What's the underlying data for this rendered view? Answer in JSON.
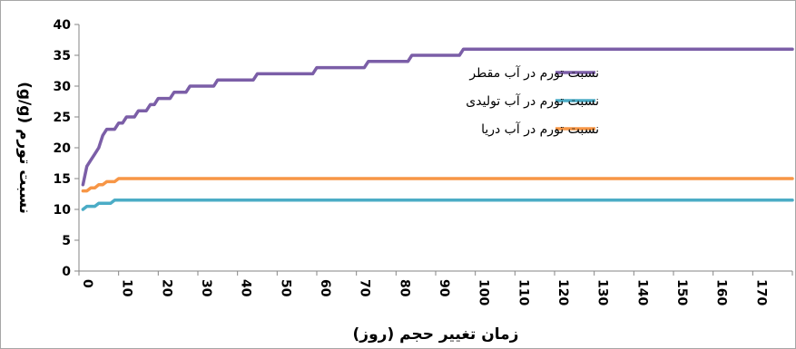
{
  "chart_data": {
    "type": "line",
    "title": "",
    "xlabel": "زمان تغییر حجم (روز)",
    "ylabel": "نسبت تورم (g/g)",
    "xlim": [
      0,
      180
    ],
    "ylim": [
      0,
      40
    ],
    "x_ticks": [
      0,
      10,
      20,
      30,
      40,
      50,
      60,
      70,
      80,
      90,
      100,
      110,
      120,
      130,
      140,
      150,
      160,
      170,
      180
    ],
    "x_tick_labels": [
      "0",
      "10",
      "20",
      "30",
      "40",
      "50",
      "60",
      "70",
      "80",
      "90",
      "100",
      "110",
      "120",
      "130",
      "140",
      "150",
      "160",
      "170",
      "180"
    ],
    "y_ticks": [
      0,
      5,
      10,
      15,
      20,
      25,
      30,
      35,
      40
    ],
    "y_tick_labels": [
      "0",
      "5",
      "10",
      "15",
      "20",
      "25",
      "30",
      "35",
      "40"
    ],
    "grid": false,
    "legend_position": "top-right",
    "series": [
      {
        "name": "نسبت تورم در آب مقطر",
        "color": "#7B5EA7",
        "points": [
          [
            1,
            14
          ],
          [
            2,
            17
          ],
          [
            3,
            18
          ],
          [
            4,
            19
          ],
          [
            5,
            20
          ],
          [
            6,
            22
          ],
          [
            7,
            23
          ],
          [
            8,
            23
          ],
          [
            9,
            23
          ],
          [
            10,
            24
          ],
          [
            11,
            24
          ],
          [
            12,
            25
          ],
          [
            13,
            25
          ],
          [
            14,
            25
          ],
          [
            15,
            26
          ],
          [
            16,
            26
          ],
          [
            17,
            26
          ],
          [
            18,
            27
          ],
          [
            19,
            27
          ],
          [
            20,
            28
          ],
          [
            21,
            28
          ],
          [
            22,
            28
          ],
          [
            23,
            28
          ],
          [
            24,
            29
          ],
          [
            25,
            29
          ],
          [
            26,
            29
          ],
          [
            27,
            29
          ],
          [
            28,
            30
          ],
          [
            30,
            30
          ],
          [
            34,
            30
          ],
          [
            35,
            31
          ],
          [
            40,
            31
          ],
          [
            44,
            31
          ],
          [
            45,
            32
          ],
          [
            50,
            32
          ],
          [
            59,
            32
          ],
          [
            60,
            33
          ],
          [
            65,
            33
          ],
          [
            72,
            33
          ],
          [
            73,
            34
          ],
          [
            80,
            34
          ],
          [
            83,
            34
          ],
          [
            84,
            35
          ],
          [
            90,
            35
          ],
          [
            96,
            35
          ],
          [
            97,
            36
          ],
          [
            180,
            36
          ]
        ]
      },
      {
        "name": "نسبت تورم در آب تولیدی",
        "color": "#4BACC6",
        "points": [
          [
            1,
            10
          ],
          [
            2,
            10.5
          ],
          [
            4,
            10.5
          ],
          [
            5,
            11
          ],
          [
            8,
            11
          ],
          [
            9,
            11.5
          ],
          [
            180,
            11.5
          ]
        ]
      },
      {
        "name": "نسبت تورم در آب دریا",
        "color": "#F79646",
        "points": [
          [
            1,
            13
          ],
          [
            2,
            13
          ],
          [
            3,
            13.5
          ],
          [
            4,
            13.5
          ],
          [
            5,
            14
          ],
          [
            6,
            14
          ],
          [
            7,
            14.5
          ],
          [
            9,
            14.5
          ],
          [
            10,
            15
          ],
          [
            180,
            15
          ]
        ]
      }
    ]
  }
}
